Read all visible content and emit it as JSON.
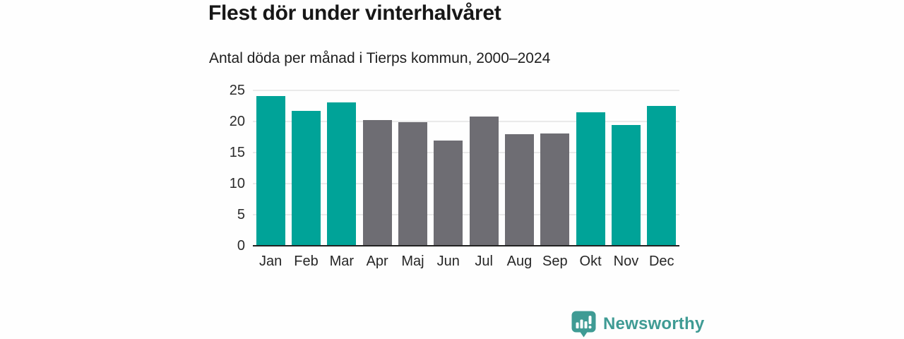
{
  "header": {
    "title": "Flest dör under vinterhalvåret",
    "subtitle": "Antal döda per månad i Tierps kommun, 2000–2024"
  },
  "branding": {
    "logo_icon": "newsworthy-chart-bubble-icon",
    "name": "Newsworthy",
    "brand_color": "#3f9b94"
  },
  "chart_data": {
    "type": "bar",
    "title": "Flest dör under vinterhalvåret",
    "subtitle": "Antal döda per månad i Tierps kommun, 2000–2024",
    "categories": [
      "Jan",
      "Feb",
      "Mar",
      "Apr",
      "Maj",
      "Jun",
      "Jul",
      "Aug",
      "Sep",
      "Okt",
      "Nov",
      "Dec"
    ],
    "values": [
      24.1,
      21.7,
      23.1,
      20.2,
      19.9,
      16.9,
      20.8,
      18.0,
      18.1,
      21.5,
      19.4,
      22.5
    ],
    "groups": [
      "winter",
      "winter",
      "winter",
      "summer",
      "summer",
      "summer",
      "summer",
      "summer",
      "summer",
      "winter",
      "winter",
      "winter"
    ],
    "palette": {
      "winter": "#00a398",
      "summer": "#6e6d73"
    },
    "xlabel": "",
    "ylabel": "",
    "ylim": [
      0,
      25
    ],
    "yticks": [
      0,
      5,
      10,
      15,
      20,
      25
    ],
    "grid": "horizontal",
    "gridline_color": "#eaeaea",
    "axis_color": "#222222",
    "legend": "none"
  }
}
